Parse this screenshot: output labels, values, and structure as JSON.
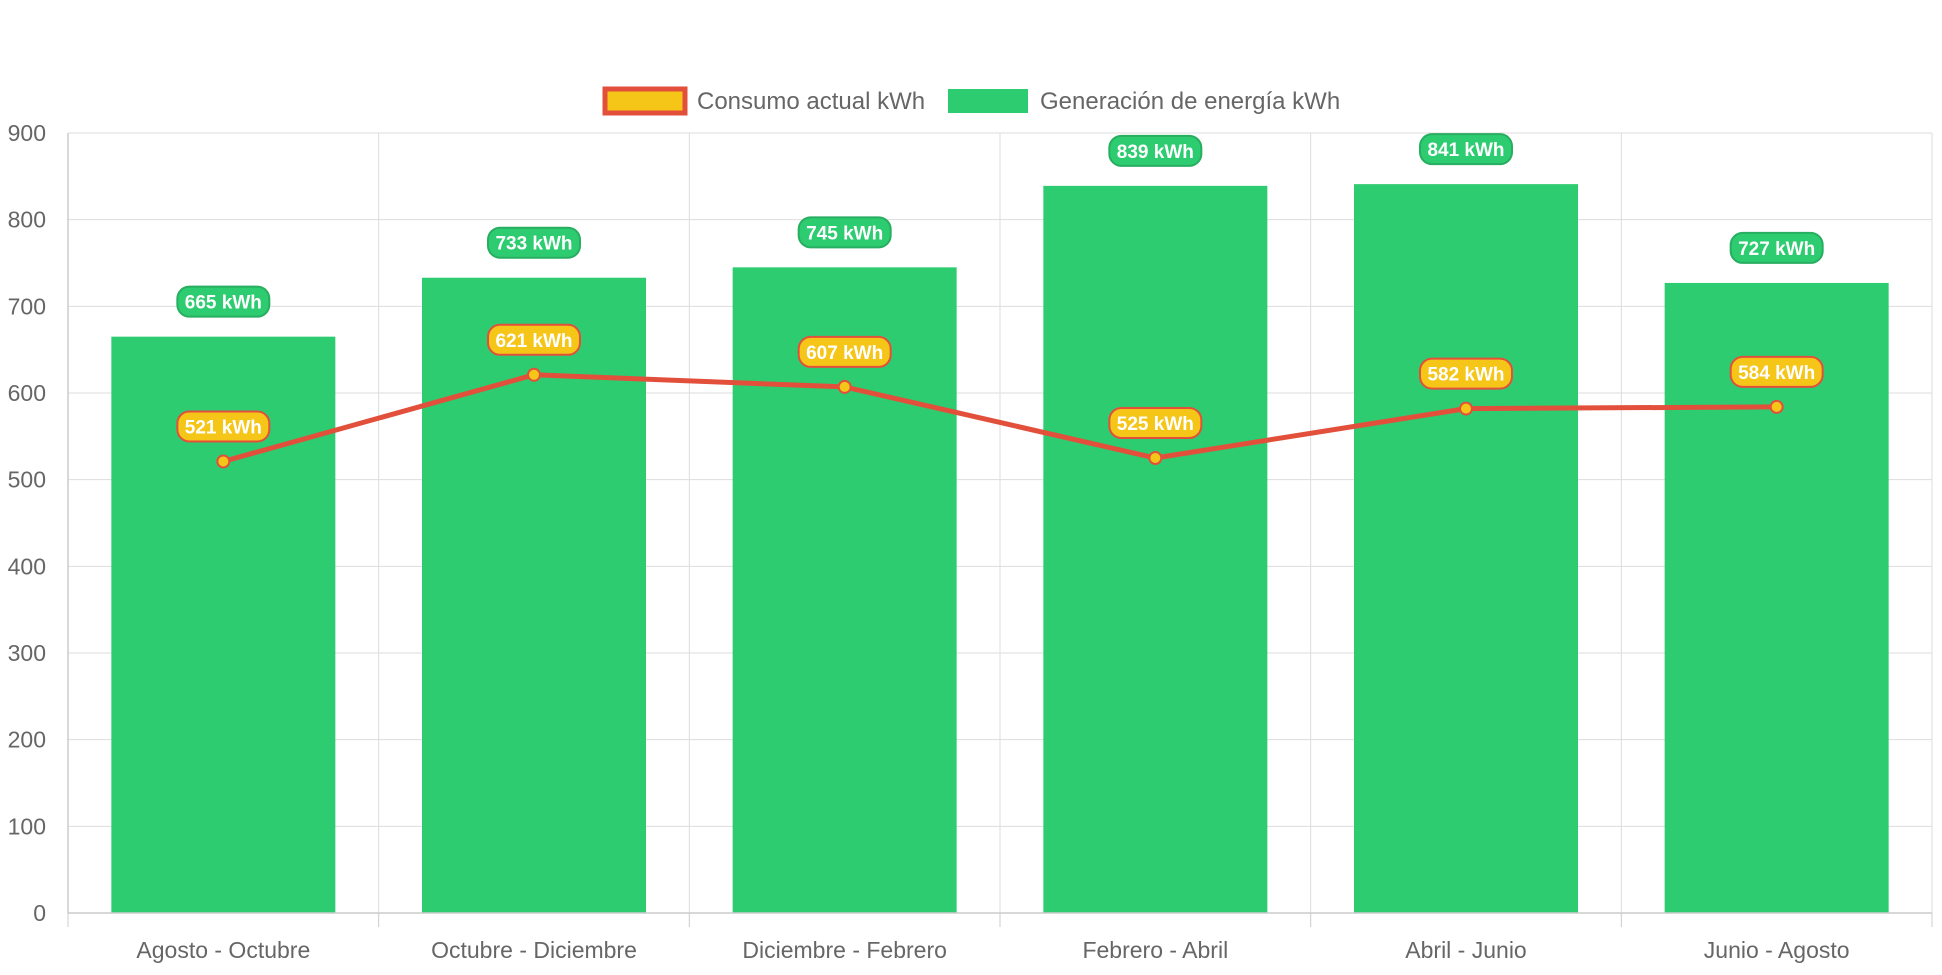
{
  "chart_data": {
    "type": "bar",
    "title": "",
    "xlabel": "",
    "ylabel": "",
    "ylim": [
      0,
      900
    ],
    "ytick_step": 100,
    "categories": [
      "Agosto - Octubre",
      "Octubre - Diciembre",
      "Diciembre - Febrero",
      "Febrero - Abril",
      "Abril - Junio",
      "Junio - Agosto"
    ],
    "series": [
      {
        "name": "Consumo actual kWh",
        "render": "line",
        "values": [
          521,
          621,
          607,
          525,
          582,
          584
        ],
        "labels": [
          "521 kWh",
          "621 kWh",
          "607 kWh",
          "525 kWh",
          "582 kWh",
          "584 kWh"
        ],
        "line_color": "#e2503c",
        "fill_color": "#f5c518"
      },
      {
        "name": "Generación de energía kWh",
        "render": "bar",
        "values": [
          665,
          733,
          745,
          839,
          841,
          727
        ],
        "labels": [
          "665 kWh",
          "733 kWh",
          "745 kWh",
          "839 kWh",
          "841 kWh",
          "727 kWh"
        ],
        "fill_color": "#2ecc71",
        "label_border": "#27ae60"
      }
    ],
    "legend_position": "top",
    "grid": true
  }
}
